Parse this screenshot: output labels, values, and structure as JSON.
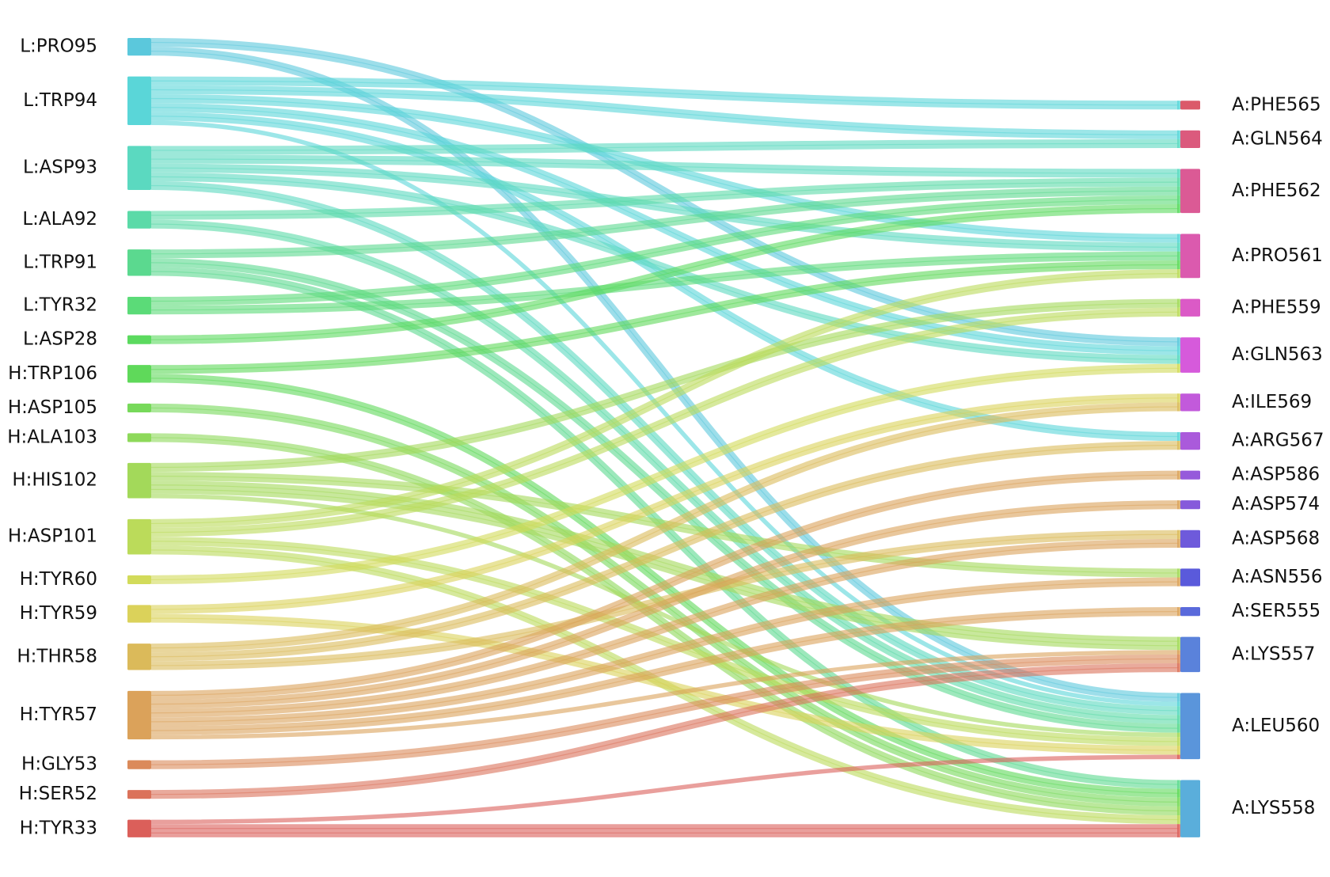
{
  "chart_data": {
    "type": "sankey",
    "left_nodes": [
      {
        "name": "L:PRO95",
        "color": "#5bc8dc"
      },
      {
        "name": "L:TRP94",
        "color": "#5ad6d8"
      },
      {
        "name": "L:ASP93",
        "color": "#5bd9c0"
      },
      {
        "name": "L:ALA92",
        "color": "#5bdaa8"
      },
      {
        "name": "L:TRP91",
        "color": "#5bd98f"
      },
      {
        "name": "L:TYR32",
        "color": "#5bdb78"
      },
      {
        "name": "L:ASP28",
        "color": "#5bda5f"
      },
      {
        "name": "H:TRP106",
        "color": "#5fd95a"
      },
      {
        "name": "H:ASP105",
        "color": "#77d95a"
      },
      {
        "name": "H:ALA103",
        "color": "#8dd95a"
      },
      {
        "name": "H:HIS102",
        "color": "#a3d95a"
      },
      {
        "name": "H:ASP101",
        "color": "#bbdb5a"
      },
      {
        "name": "H:TYR60",
        "color": "#d2db5a"
      },
      {
        "name": "H:TYR59",
        "color": "#dbd25a"
      },
      {
        "name": "H:THR58",
        "color": "#dbba5a"
      },
      {
        "name": "H:TYR57",
        "color": "#dba25a"
      },
      {
        "name": "H:GLY53",
        "color": "#db8a5a"
      },
      {
        "name": "H:SER52",
        "color": "#db725a"
      },
      {
        "name": "H:TYR33",
        "color": "#db5f5a"
      }
    ],
    "right_nodes": [
      {
        "name": "A:PHE565",
        "color": "#db5a6a"
      },
      {
        "name": "A:GLN564",
        "color": "#db5a7d"
      },
      {
        "name": "A:PHE562",
        "color": "#db5a95"
      },
      {
        "name": "A:PRO561",
        "color": "#db5aae"
      },
      {
        "name": "A:PHE559",
        "color": "#db5ac6"
      },
      {
        "name": "A:GLN563",
        "color": "#d65adb"
      },
      {
        "name": "A:ILE569",
        "color": "#c25adb"
      },
      {
        "name": "A:ARG567",
        "color": "#aa5adb"
      },
      {
        "name": "A:ASP586",
        "color": "#965adb"
      },
      {
        "name": "A:ASP574",
        "color": "#865adb"
      },
      {
        "name": "A:ASP568",
        "color": "#6e5adb"
      },
      {
        "name": "A:ASN556",
        "color": "#5a5adb"
      },
      {
        "name": "A:SER555",
        "color": "#5a6adb"
      },
      {
        "name": "A:LYS557",
        "color": "#5a82db"
      },
      {
        "name": "A:LEU560",
        "color": "#5a95db"
      },
      {
        "name": "A:LYS558",
        "color": "#5aaedb"
      }
    ],
    "links": [
      {
        "source": 0,
        "target": 5,
        "value": 2
      },
      {
        "source": 0,
        "target": 14,
        "value": 2
      },
      {
        "source": 1,
        "target": 0,
        "value": 2
      },
      {
        "source": 1,
        "target": 1,
        "value": 2
      },
      {
        "source": 1,
        "target": 3,
        "value": 2
      },
      {
        "source": 1,
        "target": 5,
        "value": 2
      },
      {
        "source": 1,
        "target": 7,
        "value": 2
      },
      {
        "source": 1,
        "target": 14,
        "value": 1
      },
      {
        "source": 2,
        "target": 1,
        "value": 2
      },
      {
        "source": 2,
        "target": 2,
        "value": 2
      },
      {
        "source": 2,
        "target": 3,
        "value": 2
      },
      {
        "source": 2,
        "target": 5,
        "value": 2
      },
      {
        "source": 2,
        "target": 14,
        "value": 2
      },
      {
        "source": 3,
        "target": 2,
        "value": 2
      },
      {
        "source": 3,
        "target": 14,
        "value": 2
      },
      {
        "source": 4,
        "target": 2,
        "value": 2
      },
      {
        "source": 4,
        "target": 14,
        "value": 2
      },
      {
        "source": 4,
        "target": 15,
        "value": 2
      },
      {
        "source": 5,
        "target": 2,
        "value": 2
      },
      {
        "source": 5,
        "target": 3,
        "value": 2
      },
      {
        "source": 6,
        "target": 2,
        "value": 2
      },
      {
        "source": 7,
        "target": 3,
        "value": 2
      },
      {
        "source": 7,
        "target": 15,
        "value": 2
      },
      {
        "source": 8,
        "target": 15,
        "value": 2
      },
      {
        "source": 9,
        "target": 15,
        "value": 2
      },
      {
        "source": 10,
        "target": 4,
        "value": 2
      },
      {
        "source": 10,
        "target": 11,
        "value": 2
      },
      {
        "source": 10,
        "target": 13,
        "value": 3
      },
      {
        "source": 10,
        "target": 14,
        "value": 1
      },
      {
        "source": 11,
        "target": 3,
        "value": 2
      },
      {
        "source": 11,
        "target": 4,
        "value": 2
      },
      {
        "source": 11,
        "target": 14,
        "value": 2
      },
      {
        "source": 11,
        "target": 15,
        "value": 2
      },
      {
        "source": 12,
        "target": 5,
        "value": 2
      },
      {
        "source": 13,
        "target": 6,
        "value": 2
      },
      {
        "source": 13,
        "target": 14,
        "value": 2
      },
      {
        "source": 14,
        "target": 6,
        "value": 2
      },
      {
        "source": 14,
        "target": 7,
        "value": 2
      },
      {
        "source": 14,
        "target": 10,
        "value": 2
      },
      {
        "source": 15,
        "target": 8,
        "value": 2
      },
      {
        "source": 15,
        "target": 9,
        "value": 2
      },
      {
        "source": 15,
        "target": 10,
        "value": 2
      },
      {
        "source": 15,
        "target": 11,
        "value": 2
      },
      {
        "source": 15,
        "target": 12,
        "value": 2
      },
      {
        "source": 15,
        "target": 13,
        "value": 1
      },
      {
        "source": 16,
        "target": 13,
        "value": 2
      },
      {
        "source": 17,
        "target": 13,
        "value": 2
      },
      {
        "source": 18,
        "target": 14,
        "value": 1
      },
      {
        "source": 18,
        "target": 15,
        "value": 3
      }
    ]
  }
}
